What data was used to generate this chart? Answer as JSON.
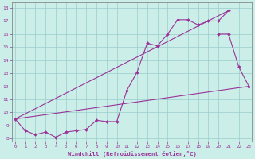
{
  "bg_color": "#cceee8",
  "grid_color": "#99cccc",
  "line_color": "#993399",
  "xlabel": "Windchill (Refroidissement éolien,°C)",
  "yticks": [
    8,
    9,
    10,
    11,
    12,
    13,
    14,
    15,
    16,
    17,
    18
  ],
  "xticks": [
    0,
    1,
    2,
    3,
    4,
    5,
    6,
    7,
    8,
    9,
    10,
    11,
    12,
    13,
    14,
    15,
    16,
    17,
    18,
    19,
    20,
    21,
    22,
    23
  ],
  "ylim": [
    7.8,
    18.4
  ],
  "xlim": [
    -0.3,
    23.3
  ],
  "series1_x": [
    0,
    1,
    2,
    3,
    4,
    5,
    6,
    7,
    8,
    9,
    10,
    11,
    12,
    13,
    14,
    15,
    16,
    17,
    18,
    19,
    20,
    21
  ],
  "series1_y": [
    9.5,
    8.6,
    8.3,
    8.5,
    8.1,
    8.5,
    8.6,
    8.7,
    9.4,
    9.3,
    9.3,
    11.7,
    13.1,
    15.3,
    15.1,
    16.0,
    17.1,
    17.1,
    16.7,
    17.0,
    17.0,
    17.8
  ],
  "series2_x": [
    0,
    23
  ],
  "series2_y": [
    9.5,
    12.0
  ],
  "series3_x": [
    0,
    21
  ],
  "series3_y": [
    9.5,
    17.8
  ],
  "series4_x": [
    20,
    21,
    22,
    23
  ],
  "series4_y": [
    16.0,
    16.0,
    13.5,
    12.0
  ]
}
